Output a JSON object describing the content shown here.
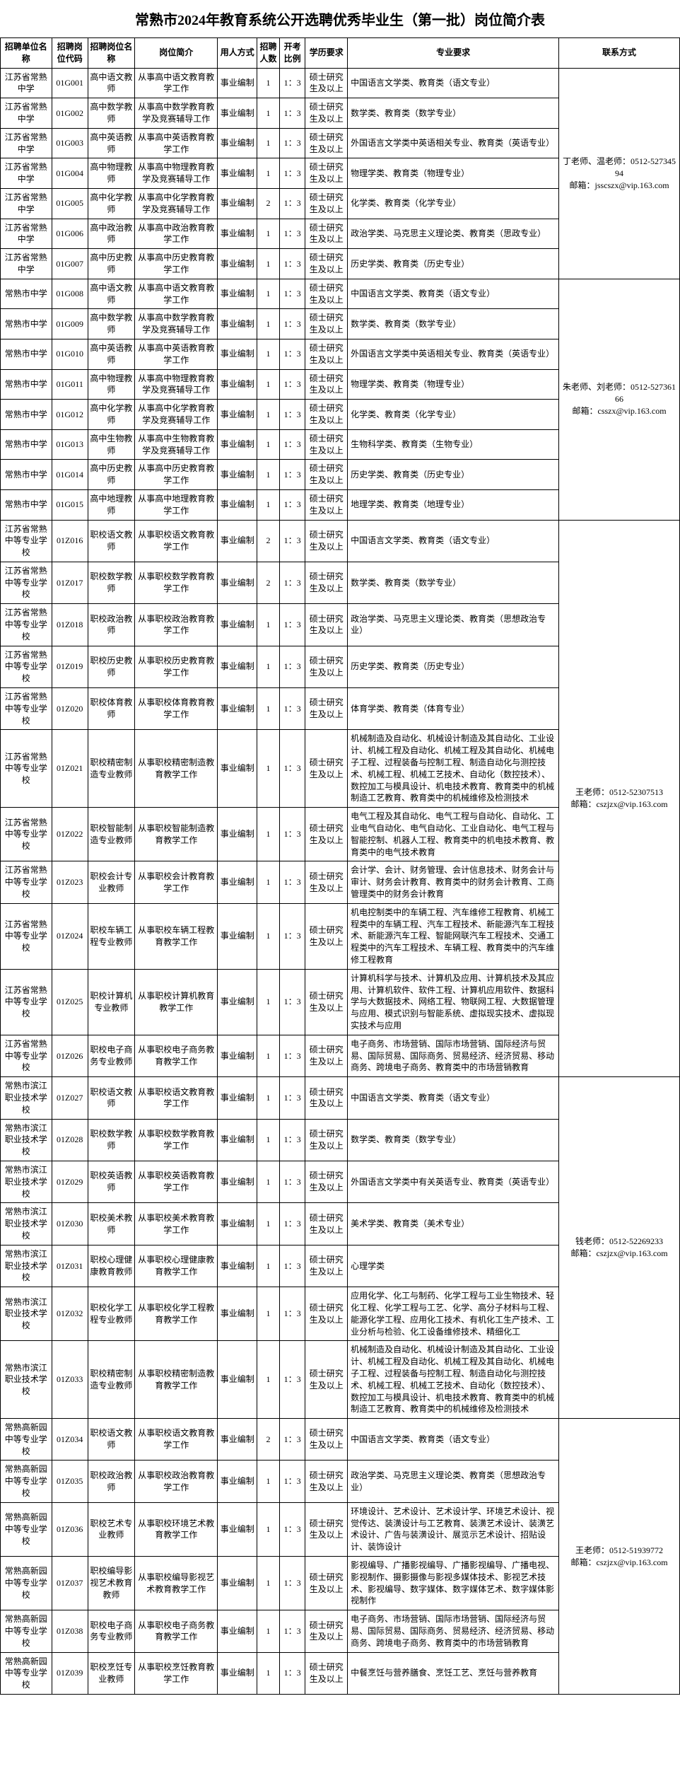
{
  "title": "常熟市2024年教育系统公开选聘优秀毕业生（第一批）岗位简介表",
  "headers": [
    "招聘单位名称",
    "招聘岗位代码",
    "招聘岗位名称",
    "岗位简介",
    "用人方式",
    "招聘人数",
    "开考比例",
    "学历要求",
    "专业要求",
    "联系方式"
  ],
  "group1": {
    "contact": "丁老师、温老师：0512-52734594\n邮箱：jsscszx@vip.163.com",
    "rows": [
      {
        "unit": "江苏省常熟中学",
        "code": "01G001",
        "post": "高中语文教师",
        "intro": "从事高中语文教育教学工作",
        "way": "事业编制",
        "num": "1",
        "ratio": "1：3",
        "edu": "硕士研究生及以上",
        "req": "中国语言文学类、教育类（语文专业）"
      },
      {
        "unit": "江苏省常熟中学",
        "code": "01G002",
        "post": "高中数学教师",
        "intro": "从事高中数学教育教学及竞赛辅导工作",
        "way": "事业编制",
        "num": "1",
        "ratio": "1：3",
        "edu": "硕士研究生及以上",
        "req": "数学类、教育类（数学专业）"
      },
      {
        "unit": "江苏省常熟中学",
        "code": "01G003",
        "post": "高中英语教师",
        "intro": "从事高中英语教育教学工作",
        "way": "事业编制",
        "num": "1",
        "ratio": "1：3",
        "edu": "硕士研究生及以上",
        "req": "外国语言文学类中英语相关专业、教育类（英语专业）"
      },
      {
        "unit": "江苏省常熟中学",
        "code": "01G004",
        "post": "高中物理教师",
        "intro": "从事高中物理教育教学及竞赛辅导工作",
        "way": "事业编制",
        "num": "1",
        "ratio": "1：3",
        "edu": "硕士研究生及以上",
        "req": "物理学类、教育类（物理专业）"
      },
      {
        "unit": "江苏省常熟中学",
        "code": "01G005",
        "post": "高中化学教师",
        "intro": "从事高中化学教育教学及竞赛辅导工作",
        "way": "事业编制",
        "num": "2",
        "ratio": "1：3",
        "edu": "硕士研究生及以上",
        "req": "化学类、教育类（化学专业）"
      },
      {
        "unit": "江苏省常熟中学",
        "code": "01G006",
        "post": "高中政治教师",
        "intro": "从事高中政治教育教学工作",
        "way": "事业编制",
        "num": "1",
        "ratio": "1：3",
        "edu": "硕士研究生及以上",
        "req": "政治学类、马克思主义理论类、教育类（思政专业）"
      },
      {
        "unit": "江苏省常熟中学",
        "code": "01G007",
        "post": "高中历史教师",
        "intro": "从事高中历史教育教学工作",
        "way": "事业编制",
        "num": "1",
        "ratio": "1：3",
        "edu": "硕士研究生及以上",
        "req": "历史学类、教育类（历史专业）"
      }
    ]
  },
  "group2": {
    "contact": "朱老师、刘老师：0512-52736166\n邮箱：csszx@vip.163.com",
    "rows": [
      {
        "unit": "常熟市中学",
        "code": "01G008",
        "post": "高中语文教师",
        "intro": "从事高中语文教育教学工作",
        "way": "事业编制",
        "num": "1",
        "ratio": "1：3",
        "edu": "硕士研究生及以上",
        "req": "中国语言文学类、教育类（语文专业）"
      },
      {
        "unit": "常熟市中学",
        "code": "01G009",
        "post": "高中数学教师",
        "intro": "从事高中数学教育教学及竞赛辅导工作",
        "way": "事业编制",
        "num": "1",
        "ratio": "1：3",
        "edu": "硕士研究生及以上",
        "req": "数学类、教育类（数学专业）"
      },
      {
        "unit": "常熟市中学",
        "code": "01G010",
        "post": "高中英语教师",
        "intro": "从事高中英语教育教学工作",
        "way": "事业编制",
        "num": "1",
        "ratio": "1：3",
        "edu": "硕士研究生及以上",
        "req": "外国语言文学类中英语相关专业、教育类（英语专业）"
      },
      {
        "unit": "常熟市中学",
        "code": "01G011",
        "post": "高中物理教师",
        "intro": "从事高中物理教育教学及竞赛辅导工作",
        "way": "事业编制",
        "num": "1",
        "ratio": "1：3",
        "edu": "硕士研究生及以上",
        "req": "物理学类、教育类（物理专业）"
      },
      {
        "unit": "常熟市中学",
        "code": "01G012",
        "post": "高中化学教师",
        "intro": "从事高中化学教育教学及竞赛辅导工作",
        "way": "事业编制",
        "num": "1",
        "ratio": "1：3",
        "edu": "硕士研究生及以上",
        "req": "化学类、教育类（化学专业）"
      },
      {
        "unit": "常熟市中学",
        "code": "01G013",
        "post": "高中生物教师",
        "intro": "从事高中生物教育教学及竞赛辅导工作",
        "way": "事业编制",
        "num": "1",
        "ratio": "1：3",
        "edu": "硕士研究生及以上",
        "req": "生物科学类、教育类（生物专业）"
      },
      {
        "unit": "常熟市中学",
        "code": "01G014",
        "post": "高中历史教师",
        "intro": "从事高中历史教育教学工作",
        "way": "事业编制",
        "num": "1",
        "ratio": "1：3",
        "edu": "硕士研究生及以上",
        "req": "历史学类、教育类（历史专业）"
      },
      {
        "unit": "常熟市中学",
        "code": "01G015",
        "post": "高中地理教师",
        "intro": "从事高中地理教育教学工作",
        "way": "事业编制",
        "num": "1",
        "ratio": "1：3",
        "edu": "硕士研究生及以上",
        "req": "地理学类、教育类（地理专业）"
      }
    ]
  },
  "group3": {
    "contact": "王老师：0512-52307513\n邮箱：cszjzx@vip.163.com",
    "rows": [
      {
        "unit": "江苏省常熟中等专业学校",
        "code": "01Z016",
        "post": "职校语文教师",
        "intro": "从事职校语文教育教学工作",
        "way": "事业编制",
        "num": "2",
        "ratio": "1：3",
        "edu": "硕士研究生及以上",
        "req": "中国语言文学类、教育类（语文专业）"
      },
      {
        "unit": "江苏省常熟中等专业学校",
        "code": "01Z017",
        "post": "职校数学教师",
        "intro": "从事职校数学教育教学工作",
        "way": "事业编制",
        "num": "2",
        "ratio": "1：3",
        "edu": "硕士研究生及以上",
        "req": "数学类、教育类（数学专业）"
      },
      {
        "unit": "江苏省常熟中等专业学校",
        "code": "01Z018",
        "post": "职校政治教师",
        "intro": "从事职校政治教育教学工作",
        "way": "事业编制",
        "num": "1",
        "ratio": "1：3",
        "edu": "硕士研究生及以上",
        "req": "政治学类、马克思主义理论类、教育类（思想政治专业）"
      },
      {
        "unit": "江苏省常熟中等专业学校",
        "code": "01Z019",
        "post": "职校历史教师",
        "intro": "从事职校历史教育教学工作",
        "way": "事业编制",
        "num": "1",
        "ratio": "1：3",
        "edu": "硕士研究生及以上",
        "req": "历史学类、教育类（历史专业）"
      },
      {
        "unit": "江苏省常熟中等专业学校",
        "code": "01Z020",
        "post": "职校体育教师",
        "intro": "从事职校体育教育教学工作",
        "way": "事业编制",
        "num": "1",
        "ratio": "1：3",
        "edu": "硕士研究生及以上",
        "req": "体育学类、教育类（体育专业）"
      },
      {
        "unit": "江苏省常熟中等专业学校",
        "code": "01Z021",
        "post": "职校精密制造专业教师",
        "intro": "从事职校精密制造教育教学工作",
        "way": "事业编制",
        "num": "1",
        "ratio": "1：3",
        "edu": "硕士研究生及以上",
        "req": "机械制造及自动化、机械设计制造及其自动化、工业设计、机械工程及自动化、机械工程及其自动化、机械电子工程、过程装备与控制工程、制造自动化与测控技术、机械工程、机械工艺技术、自动化（数控技术）、数控加工与模具设计、机电技术教育、教育类中的机械制造工艺教育、教育类中的机械维修及检测技术"
      },
      {
        "unit": "江苏省常熟中等专业学校",
        "code": "01Z022",
        "post": "职校智能制造专业教师",
        "intro": "从事职校智能制造教育教学工作",
        "way": "事业编制",
        "num": "1",
        "ratio": "1：3",
        "edu": "硕士研究生及以上",
        "req": "电气工程及其自动化、电气工程与自动化、自动化、工业电气自动化、电气自动化、工业自动化、电气工程与智能控制、机器人工程、教育类中的机电技术教育、教育类中的电气技术教育"
      },
      {
        "unit": "江苏省常熟中等专业学校",
        "code": "01Z023",
        "post": "职校会计专业教师",
        "intro": "从事职校会计教育教学工作",
        "way": "事业编制",
        "num": "1",
        "ratio": "1：3",
        "edu": "硕士研究生及以上",
        "req": "会计学、会计、财务管理、会计信息技术、财务会计与审计、财务会计教育、教育类中的财务会计教育、工商管理类中的财务会计教育"
      },
      {
        "unit": "江苏省常熟中等专业学校",
        "code": "01Z024",
        "post": "职校车辆工程专业教师",
        "intro": "从事职校车辆工程教育教学工作",
        "way": "事业编制",
        "num": "1",
        "ratio": "1：3",
        "edu": "硕士研究生及以上",
        "req": "机电控制类中的车辆工程、汽车维修工程教育、机械工程类中的车辆工程、汽车工程技术、新能源汽车工程技术、新能源汽车工程、智能网联汽车工程技术、交通工程类中的汽车工程技术、车辆工程、教育类中的汽车维修工程教育"
      },
      {
        "unit": "江苏省常熟中等专业学校",
        "code": "01Z025",
        "post": "职校计算机专业教师",
        "intro": "从事职校计算机教育教学工作",
        "way": "事业编制",
        "num": "1",
        "ratio": "1：3",
        "edu": "硕士研究生及以上",
        "req": "计算机科学与技术、计算机及应用、计算机技术及其应用、计算机软件、软件工程、计算机应用软件、数据科学与大数据技术、网络工程、物联网工程、大数据管理与应用、模式识别与智能系统、虚拟现实技术、虚拟现实技术与应用"
      },
      {
        "unit": "江苏省常熟中等专业学校",
        "code": "01Z026",
        "post": "职校电子商务专业教师",
        "intro": "从事职校电子商务教育教学工作",
        "way": "事业编制",
        "num": "1",
        "ratio": "1：3",
        "edu": "硕士研究生及以上",
        "req": "电子商务、市场营销、国际市场营销、国际经济与贸易、国际贸易、国际商务、贸易经济、经济贸易、移动商务、跨境电子商务、教育类中的市场营销教育"
      }
    ]
  },
  "group4": {
    "contact": "钱老师：0512-52269233\n邮箱：cszjzx@vip.163.com",
    "rows": [
      {
        "unit": "常熟市滨江职业技术学校",
        "code": "01Z027",
        "post": "职校语文教师",
        "intro": "从事职校语文教育教学工作",
        "way": "事业编制",
        "num": "1",
        "ratio": "1：3",
        "edu": "硕士研究生及以上",
        "req": "中国语言文学类、教育类（语文专业）"
      },
      {
        "unit": "常熟市滨江职业技术学校",
        "code": "01Z028",
        "post": "职校数学教师",
        "intro": "从事职校数学教育教学工作",
        "way": "事业编制",
        "num": "1",
        "ratio": "1：3",
        "edu": "硕士研究生及以上",
        "req": "数学类、教育类（数学专业）"
      },
      {
        "unit": "常熟市滨江职业技术学校",
        "code": "01Z029",
        "post": "职校英语教师",
        "intro": "从事职校英语教育教学工作",
        "way": "事业编制",
        "num": "1",
        "ratio": "1：3",
        "edu": "硕士研究生及以上",
        "req": "外国语言文学类中有关英语专业、教育类（英语专业）"
      },
      {
        "unit": "常熟市滨江职业技术学校",
        "code": "01Z030",
        "post": "职校美术教师",
        "intro": "从事职校美术教育教学工作",
        "way": "事业编制",
        "num": "1",
        "ratio": "1：3",
        "edu": "硕士研究生及以上",
        "req": "美术学类、教育类（美术专业）"
      },
      {
        "unit": "常熟市滨江职业技术学校",
        "code": "01Z031",
        "post": "职校心理健康教育教师",
        "intro": "从事职校心理健康教育教学工作",
        "way": "事业编制",
        "num": "1",
        "ratio": "1：3",
        "edu": "硕士研究生及以上",
        "req": "心理学类"
      },
      {
        "unit": "常熟市滨江职业技术学校",
        "code": "01Z032",
        "post": "职校化学工程专业教师",
        "intro": "从事职校化学工程教育教学工作",
        "way": "事业编制",
        "num": "1",
        "ratio": "1：3",
        "edu": "硕士研究生及以上",
        "req": "应用化学、化工与制药、化学工程与工业生物技术、轻化工程、化学工程与工艺、化学、高分子材料与工程、能源化学工程、应用化工技术、有机化工生产技术、工业分析与检验、化工设备维修技术、精细化工"
      },
      {
        "unit": "常熟市滨江职业技术学校",
        "code": "01Z033",
        "post": "职校精密制造专业教师",
        "intro": "从事职校精密制造教育教学工作",
        "way": "事业编制",
        "num": "1",
        "ratio": "1：3",
        "edu": "硕士研究生及以上",
        "req": "机械制造及自动化、机械设计制造及其自动化、工业设计、机械工程及自动化、机械工程及其自动化、机械电子工程、过程装备与控制工程、制造自动化与测控技术、机械工程、机械工艺技术、自动化（数控技术）、数控加工与模具设计、机电技术教育、教育类中的机械制造工艺教育、教育类中的机械维修及检测技术"
      }
    ]
  },
  "group5": {
    "contact": "王老师：0512-51939772\n邮箱：cszjzx@vip.163.com",
    "rows": [
      {
        "unit": "常熟高新园中等专业学校",
        "code": "01Z034",
        "post": "职校语文教师",
        "intro": "从事职校语文教育教学工作",
        "way": "事业编制",
        "num": "2",
        "ratio": "1：3",
        "edu": "硕士研究生及以上",
        "req": "中国语言文学类、教育类（语文专业）"
      },
      {
        "unit": "常熟高新园中等专业学校",
        "code": "01Z035",
        "post": "职校政治教师",
        "intro": "从事职校政治教育教学工作",
        "way": "事业编制",
        "num": "1",
        "ratio": "1：3",
        "edu": "硕士研究生及以上",
        "req": "政治学类、马克思主义理论类、教育类（思想政治专业）"
      },
      {
        "unit": "常熟高新园中等专业学校",
        "code": "01Z036",
        "post": "职校艺术专业教师",
        "intro": "从事职校环境艺术教育教学工作",
        "way": "事业编制",
        "num": "1",
        "ratio": "1：3",
        "edu": "硕士研究生及以上",
        "req": "环境设计、艺术设计、艺术设计学、环境艺术设计、视觉传达、装潢设计与工艺教育、装潢艺术设计、装潢艺术设计、广告与装潢设计、展览示艺术设计、招贴设计、装饰设计"
      },
      {
        "unit": "常熟高新园中等专业学校",
        "code": "01Z037",
        "post": "职校编导影视艺术教育教师",
        "intro": "从事职校编导影视艺术教育教学工作",
        "way": "事业编制",
        "num": "1",
        "ratio": "1：3",
        "edu": "硕士研究生及以上",
        "req": "影视编导、广播影视编导、广播影视编导、广播电视、影视制作、摄影摄像与影视多媒体技术、影视艺术技术、影视编导、数字媒体、数字媒体艺术、数字媒体影视制作"
      },
      {
        "unit": "常熟高新园中等专业学校",
        "code": "01Z038",
        "post": "职校电子商务专业教师",
        "intro": "从事职校电子商务教育教学工作",
        "way": "事业编制",
        "num": "1",
        "ratio": "1：3",
        "edu": "硕士研究生及以上",
        "req": "电子商务、市场营销、国际市场营销、国际经济与贸易、国际贸易、国际商务、贸易经济、经济贸易、移动商务、跨境电子商务、教育类中的市场营销教育"
      },
      {
        "unit": "常熟高新园中等专业学校",
        "code": "01Z039",
        "post": "职校烹饪专业教师",
        "intro": "从事职校烹饪教育教学工作",
        "way": "事业编制",
        "num": "1",
        "ratio": "1：3",
        "edu": "硕士研究生及以上",
        "req": "中餐烹饪与营养膳食、烹饪工艺、烹饪与营养教育"
      }
    ]
  }
}
